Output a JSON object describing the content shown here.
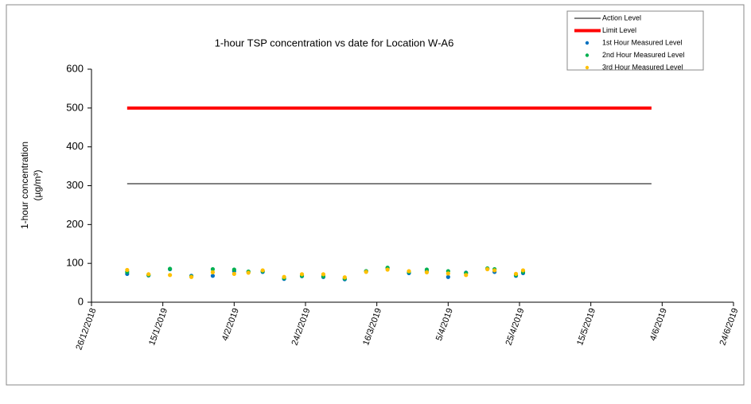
{
  "chart_data": {
    "type": "scatter",
    "title": "1-hour TSP concentration vs date for Location  W-A6",
    "ylabel": [
      "1-hour concentration",
      "(µg/m³)"
    ],
    "xlim": [
      "26/12/2018",
      "24/6/2019"
    ],
    "xticks": [
      "26/12/2018",
      "15/1/2019",
      "4/2/2019",
      "24/2/2019",
      "16/3/2019",
      "5/4/2019",
      "25/4/2019",
      "15/5/2019",
      "4/6/2019",
      "24/6/2019"
    ],
    "ylim": [
      0,
      600
    ],
    "yticks": [
      0,
      100,
      200,
      300,
      400,
      500,
      600
    ],
    "legend": "top-right",
    "series": [
      {
        "name": "Action Level",
        "mark": "line",
        "color": "#000000",
        "width": 1,
        "x": [
          "5/1/2019",
          "1/6/2019"
        ],
        "values": [
          305,
          305
        ]
      },
      {
        "name": "Limit Level",
        "mark": "line",
        "color": "#ff0000",
        "width": 4,
        "x": [
          "5/1/2019",
          "1/6/2019"
        ],
        "values": [
          500,
          500
        ]
      },
      {
        "name": "1st Hour Measured Level",
        "mark": "point",
        "color": "#0070c0",
        "x": [
          "5/1/2019",
          "11/1/2019",
          "17/1/2019",
          "23/1/2019",
          "29/1/2019",
          "4/2/2019",
          "8/2/2019",
          "12/2/2019",
          "18/2/2019",
          "23/2/2019",
          "1/3/2019",
          "7/3/2019",
          "13/3/2019",
          "19/3/2019",
          "25/3/2019",
          "30/3/2019",
          "5/4/2019",
          "10/4/2019",
          "16/4/2019",
          "18/4/2019",
          "24/4/2019",
          "26/4/2019"
        ],
        "values": [
          73,
          69,
          85,
          68,
          68,
          80,
          78,
          78,
          60,
          67,
          65,
          59,
          80,
          88,
          75,
          80,
          65,
          76,
          86,
          78,
          68,
          75
        ]
      },
      {
        "name": "2nd Hour Measured Level",
        "mark": "point",
        "color": "#00b050",
        "x": [
          "5/1/2019",
          "11/1/2019",
          "17/1/2019",
          "23/1/2019",
          "29/1/2019",
          "4/2/2019",
          "8/2/2019",
          "12/2/2019",
          "18/2/2019",
          "23/2/2019",
          "1/3/2019",
          "7/3/2019",
          "13/3/2019",
          "19/3/2019",
          "25/3/2019",
          "30/3/2019",
          "5/4/2019",
          "10/4/2019",
          "16/4/2019",
          "18/4/2019",
          "24/4/2019",
          "26/4/2019"
        ],
        "values": [
          78,
          70,
          86,
          66,
          85,
          84,
          79,
          80,
          62,
          68,
          67,
          61,
          80,
          89,
          78,
          84,
          80,
          75,
          87,
          85,
          70,
          78
        ]
      },
      {
        "name": "3rd Hour Measured Level",
        "mark": "point",
        "color": "#ffc000",
        "x": [
          "5/1/2019",
          "11/1/2019",
          "17/1/2019",
          "23/1/2019",
          "29/1/2019",
          "4/2/2019",
          "8/2/2019",
          "12/2/2019",
          "18/2/2019",
          "23/2/2019",
          "1/3/2019",
          "7/3/2019",
          "13/3/2019",
          "19/3/2019",
          "25/3/2019",
          "30/3/2019",
          "5/4/2019",
          "10/4/2019",
          "16/4/2019",
          "18/4/2019",
          "24/4/2019",
          "26/4/2019"
        ],
        "values": [
          83,
          72,
          70,
          65,
          77,
          73,
          76,
          82,
          65,
          72,
          72,
          64,
          78,
          84,
          80,
          77,
          74,
          70,
          85,
          82,
          73,
          82
        ]
      }
    ]
  }
}
